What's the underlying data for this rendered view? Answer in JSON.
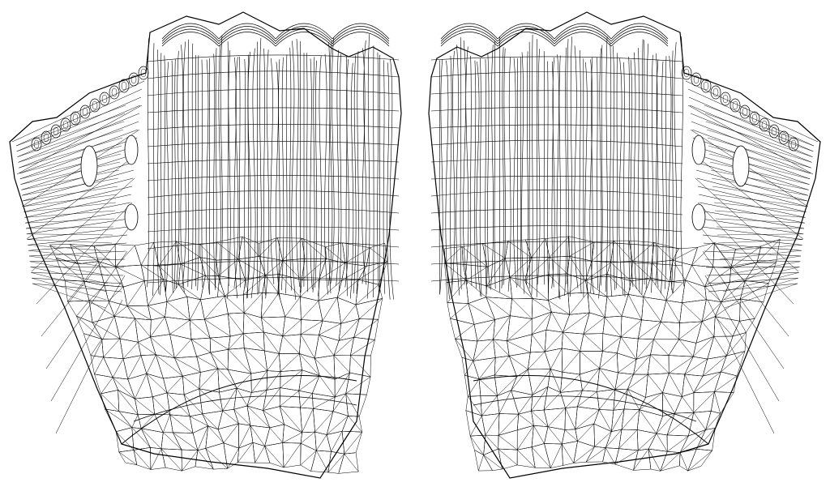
{
  "figure": {
    "subject": "glove",
    "views": [
      {
        "id": "left",
        "thumb_side": "left"
      },
      {
        "id": "right",
        "thumb_side": "right"
      }
    ],
    "stroke_color": "#000000",
    "background_color": "#ffffff"
  }
}
